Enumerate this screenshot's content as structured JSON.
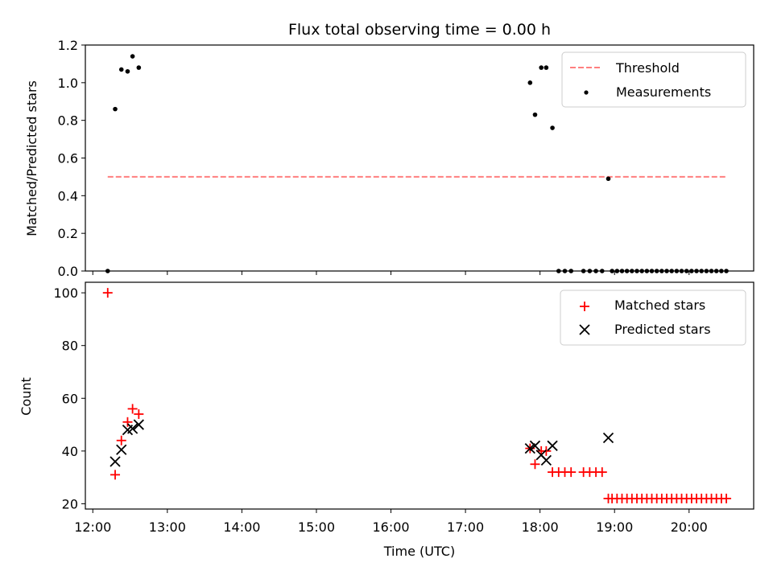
{
  "chart_data": [
    {
      "type": "scatter",
      "title": "Flux total observing time = 0.00 h",
      "xlabel": "",
      "ylabel": "Matched/Predicted stars",
      "xlim": [
        "11:54",
        "20:52"
      ],
      "ylim": [
        0,
        1.2
      ],
      "yticks": [
        "0.0",
        "0.2",
        "0.4",
        "0.6",
        "0.8",
        "1.0",
        "1.2"
      ],
      "grid": false,
      "legend_position": "top-right",
      "threshold": {
        "name": "Threshold",
        "value": 0.5,
        "x": [
          "12:12",
          "20:30"
        ],
        "color": "#ff7f7f"
      },
      "series": [
        {
          "name": "Measurements",
          "color": "#000000",
          "marker": "dot",
          "x": [
            "12:12",
            "12:18",
            "12:23",
            "12:28",
            "12:32",
            "12:37",
            "17:52",
            "17:56",
            "18:01",
            "18:05",
            "18:10",
            "18:15",
            "18:20",
            "18:25",
            "18:35",
            "18:40",
            "18:45",
            "18:50",
            "18:55",
            "18:58",
            "19:02",
            "19:06",
            "19:10",
            "19:14",
            "19:18",
            "19:22",
            "19:26",
            "19:30",
            "19:34",
            "19:38",
            "19:42",
            "19:46",
            "19:50",
            "19:54",
            "19:58",
            "20:02",
            "20:06",
            "20:10",
            "20:14",
            "20:18",
            "20:22",
            "20:26",
            "20:30"
          ],
          "y": [
            0,
            0.86,
            1.07,
            1.06,
            1.14,
            1.08,
            1.0,
            0.83,
            1.08,
            1.08,
            0.76,
            0,
            0,
            0,
            0,
            0,
            0,
            0,
            0.49,
            0,
            0,
            0,
            0,
            0,
            0,
            0,
            0,
            0,
            0,
            0,
            0,
            0,
            0,
            0,
            0,
            0,
            0,
            0,
            0,
            0,
            0,
            0,
            0
          ]
        }
      ]
    },
    {
      "type": "scatter",
      "title": "",
      "xlabel": "Time (UTC)",
      "ylabel": "Count",
      "xlim": [
        "11:54",
        "20:52"
      ],
      "xticks": [
        "12:00",
        "13:00",
        "14:00",
        "15:00",
        "16:00",
        "17:00",
        "18:00",
        "19:00",
        "20:00"
      ],
      "ylim": [
        18,
        104
      ],
      "yticks": [
        "20",
        "40",
        "60",
        "80",
        "100"
      ],
      "grid": false,
      "legend_position": "top-right",
      "series": [
        {
          "name": "Matched stars",
          "color": "#ff0000",
          "marker": "plus",
          "x": [
            "12:12",
            "12:18",
            "12:23",
            "12:28",
            "12:32",
            "12:37",
            "17:52",
            "17:56",
            "18:01",
            "18:05",
            "18:10",
            "18:15",
            "18:20",
            "18:25",
            "18:35",
            "18:40",
            "18:45",
            "18:50",
            "18:55",
            "18:58",
            "19:02",
            "19:06",
            "19:10",
            "19:14",
            "19:18",
            "19:22",
            "19:26",
            "19:30",
            "19:34",
            "19:38",
            "19:42",
            "19:46",
            "19:50",
            "19:54",
            "19:58",
            "20:02",
            "20:06",
            "20:10",
            "20:14",
            "20:18",
            "20:22",
            "20:26",
            "20:30"
          ],
          "y": [
            100,
            31,
            44,
            51,
            56,
            54,
            41,
            35,
            40,
            40,
            32,
            32,
            32,
            32,
            32,
            32,
            32,
            32,
            22,
            22,
            22,
            22,
            22,
            22,
            22,
            22,
            22,
            22,
            22,
            22,
            22,
            22,
            22,
            22,
            22,
            22,
            22,
            22,
            22,
            22,
            22,
            22,
            22
          ]
        },
        {
          "name": "Predicted stars",
          "color": "#000000",
          "marker": "x",
          "x": [
            "12:18",
            "12:23",
            "12:28",
            "12:32",
            "12:37",
            "17:52",
            "17:56",
            "18:01",
            "18:05",
            "18:10",
            "18:55"
          ],
          "y": [
            36,
            40.5,
            48,
            48.5,
            50,
            41,
            42,
            38.5,
            36.5,
            42,
            45
          ]
        }
      ]
    }
  ]
}
